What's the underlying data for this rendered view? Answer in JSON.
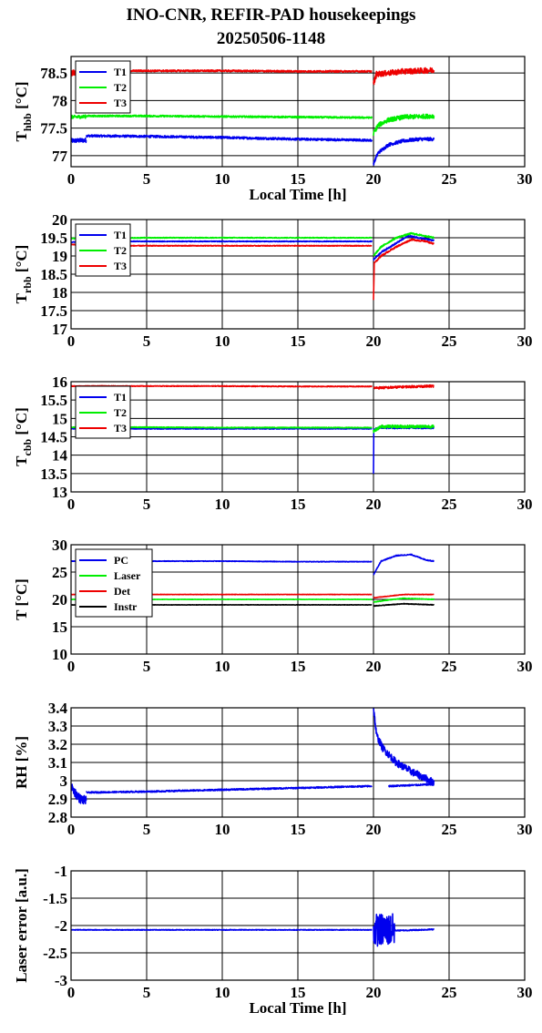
{
  "title_line1": "INO-CNR, REFIR-PAD housekeepings",
  "title_line2": "20250506-1148",
  "colors": {
    "blue": "#0000ee",
    "green": "#00ee00",
    "red": "#ee0000",
    "black": "#000000"
  },
  "chart_data": [
    {
      "type": "line",
      "ylabel_main": "T",
      "ylabel_sub": "hbb",
      "ylabel_unit": " [°C]",
      "xlabel": "Local Time [h]",
      "xlim": [
        0,
        30
      ],
      "ylim": [
        76.8,
        78.8
      ],
      "xticks": [
        0,
        5,
        10,
        15,
        20,
        25,
        30
      ],
      "yticks": [
        77,
        77.5,
        78,
        78.5
      ],
      "ytick_labels": [
        "77",
        "77.5",
        "78",
        "78.5"
      ],
      "grid": true,
      "legend": "top-left",
      "series": [
        {
          "name": "T1",
          "color": "#0000ee",
          "noise": 0.02,
          "segments": [
            {
              "x": [
                0,
                1
              ],
              "y": [
                77.27,
                77.28
              ],
              "noise": 0.04
            },
            {
              "x": [
                1,
                5,
                10,
                15,
                19.9
              ],
              "y": [
                77.36,
                77.35,
                77.33,
                77.3,
                77.28
              ]
            },
            {
              "x": [
                20,
                20.3,
                21,
                22,
                23,
                24
              ],
              "y": [
                76.85,
                77.05,
                77.2,
                77.27,
                77.3,
                77.3
              ],
              "noise": 0.03
            }
          ]
        },
        {
          "name": "T2",
          "color": "#00ee00",
          "noise": 0.015,
          "segments": [
            {
              "x": [
                0,
                1
              ],
              "y": [
                77.7,
                77.71
              ],
              "noise": 0.03
            },
            {
              "x": [
                1,
                5,
                10,
                15,
                19.9
              ],
              "y": [
                77.72,
                77.72,
                77.71,
                77.7,
                77.69
              ]
            },
            {
              "x": [
                20,
                20.3,
                21,
                22,
                24
              ],
              "y": [
                77.4,
                77.55,
                77.65,
                77.7,
                77.72
              ],
              "noise": 0.04
            }
          ]
        },
        {
          "name": "T3",
          "color": "#ee0000",
          "noise": 0.015,
          "segments": [
            {
              "x": [
                0,
                1
              ],
              "y": [
                78.5,
                78.52
              ],
              "noise": 0.05
            },
            {
              "x": [
                1,
                5,
                10,
                15,
                19.9
              ],
              "y": [
                78.54,
                78.54,
                78.54,
                78.53,
                78.53
              ]
            },
            {
              "x": [
                20,
                20.2,
                21,
                22,
                24
              ],
              "y": [
                78.3,
                78.48,
                78.5,
                78.53,
                78.55
              ],
              "noise": 0.05
            }
          ]
        }
      ]
    },
    {
      "type": "line",
      "ylabel_main": "T",
      "ylabel_sub": "rbb",
      "ylabel_unit": " [°C]",
      "xlabel": "",
      "xlim": [
        0,
        30
      ],
      "ylim": [
        17,
        20
      ],
      "xticks": [
        0,
        5,
        10,
        15,
        20,
        25,
        30
      ],
      "yticks": [
        17,
        17.5,
        18,
        18.5,
        19,
        19.5,
        20
      ],
      "ytick_labels": [
        "17",
        "17.5",
        "18",
        "18.5",
        "19",
        "19.5",
        "20"
      ],
      "grid": true,
      "legend": "top-left",
      "series": [
        {
          "name": "T1",
          "color": "#0000ee",
          "noise": 0.01,
          "segments": [
            {
              "x": [
                0,
                1,
                5,
                10,
                15,
                19.9
              ],
              "y": [
                19.38,
                19.4,
                19.4,
                19.4,
                19.4,
                19.4
              ]
            },
            {
              "x": [
                20,
                20.5,
                21.5,
                22.3,
                23,
                24
              ],
              "y": [
                18.9,
                19.1,
                19.35,
                19.55,
                19.5,
                19.42
              ],
              "noise": 0.02
            }
          ]
        },
        {
          "name": "T2",
          "color": "#00ee00",
          "noise": 0.01,
          "segments": [
            {
              "x": [
                0,
                5,
                10,
                15,
                19.9
              ],
              "y": [
                19.48,
                19.5,
                19.5,
                19.5,
                19.5
              ]
            },
            {
              "x": [
                20,
                20.5,
                21.5,
                22.5,
                23,
                24
              ],
              "y": [
                19.0,
                19.25,
                19.5,
                19.62,
                19.58,
                19.5
              ],
              "noise": 0.02
            }
          ]
        },
        {
          "name": "T3",
          "color": "#ee0000",
          "noise": 0.01,
          "segments": [
            {
              "x": [
                0,
                1,
                5,
                10,
                15,
                19.9
              ],
              "y": [
                19.32,
                19.28,
                19.28,
                19.28,
                19.28,
                19.28
              ]
            },
            {
              "x": [
                20,
                20.05,
                20.5,
                21.5,
                22.5,
                23.5,
                24
              ],
              "y": [
                17.8,
                18.8,
                19.0,
                19.25,
                19.45,
                19.4,
                19.33
              ],
              "noise": 0.02
            }
          ]
        }
      ]
    },
    {
      "type": "line",
      "ylabel_main": "T",
      "ylabel_sub": "cbb",
      "ylabel_unit": " [°C]",
      "xlabel": "",
      "xlim": [
        0,
        30
      ],
      "ylim": [
        13,
        16
      ],
      "xticks": [
        0,
        5,
        10,
        15,
        20,
        25,
        30
      ],
      "yticks": [
        13,
        13.5,
        14,
        14.5,
        15,
        15.5,
        16
      ],
      "ytick_labels": [
        "13",
        "13.5",
        "14",
        "14.5",
        "15",
        "15.5",
        "16"
      ],
      "grid": true,
      "legend": "top-left",
      "series": [
        {
          "name": "T1",
          "color": "#0000ee",
          "noise": 0.01,
          "segments": [
            {
              "x": [
                0,
                5,
                10,
                15,
                19.9
              ],
              "y": [
                14.72,
                14.72,
                14.72,
                14.72,
                14.72
              ]
            },
            {
              "x": [
                20,
                20.02,
                20.5,
                22,
                24
              ],
              "y": [
                13.5,
                14.7,
                14.75,
                14.75,
                14.75
              ],
              "noise": 0.03
            }
          ]
        },
        {
          "name": "T2",
          "color": "#00ee00",
          "noise": 0.01,
          "segments": [
            {
              "x": [
                0,
                5,
                10,
                15,
                19.9
              ],
              "y": [
                14.76,
                14.76,
                14.75,
                14.75,
                14.75
              ]
            },
            {
              "x": [
                20,
                20.5,
                22,
                24
              ],
              "y": [
                14.65,
                14.78,
                14.78,
                14.78
              ],
              "noise": 0.04
            }
          ]
        },
        {
          "name": "T3",
          "color": "#ee0000",
          "noise": 0.01,
          "segments": [
            {
              "x": [
                0,
                5,
                10,
                15,
                19.9
              ],
              "y": [
                15.88,
                15.88,
                15.88,
                15.87,
                15.87
              ]
            },
            {
              "x": [
                20,
                21,
                22,
                24
              ],
              "y": [
                15.83,
                15.84,
                15.86,
                15.88
              ],
              "noise": 0.03
            }
          ]
        }
      ]
    },
    {
      "type": "line",
      "ylabel_main": "T [°C]",
      "ylabel_sub": "",
      "ylabel_unit": "",
      "xlabel": "",
      "xlim": [
        0,
        30
      ],
      "ylim": [
        10,
        30
      ],
      "xticks": [
        0,
        5,
        10,
        15,
        20,
        25,
        30
      ],
      "yticks": [
        10,
        15,
        20,
        25,
        30
      ],
      "ytick_labels": [
        "10",
        "15",
        "20",
        "25",
        "30"
      ],
      "grid": true,
      "legend": "top-left",
      "series": [
        {
          "name": "PC",
          "color": "#0000ee",
          "noise": 0.05,
          "segments": [
            {
              "x": [
                0,
                5,
                10,
                15,
                19.9
              ],
              "y": [
                27.0,
                27.0,
                27.0,
                26.9,
                26.9
              ]
            },
            {
              "x": [
                20,
                20.5,
                21.5,
                22.5,
                23.5,
                24
              ],
              "y": [
                24.5,
                27.0,
                28.0,
                28.2,
                27.2,
                27.0
              ],
              "noise": 0.08
            }
          ]
        },
        {
          "name": "Laser",
          "color": "#00ee00",
          "noise": 0.03,
          "segments": [
            {
              "x": [
                0,
                5,
                10,
                15,
                19.9
              ],
              "y": [
                20.0,
                20.0,
                20.0,
                20.0,
                20.0
              ]
            },
            {
              "x": [
                20,
                21,
                22,
                24
              ],
              "y": [
                19.5,
                19.9,
                20.2,
                20.0
              ],
              "noise": 0.05
            }
          ]
        },
        {
          "name": "Det",
          "color": "#ee0000",
          "noise": 0.03,
          "segments": [
            {
              "x": [
                0,
                5,
                10,
                15,
                19.9
              ],
              "y": [
                20.9,
                20.9,
                20.9,
                20.9,
                20.9
              ]
            },
            {
              "x": [
                20,
                21,
                22,
                24
              ],
              "y": [
                20.3,
                20.6,
                20.9,
                20.9
              ],
              "noise": 0.04
            }
          ]
        },
        {
          "name": "Instr",
          "color": "#000000",
          "noise": 0.03,
          "segments": [
            {
              "x": [
                0,
                5,
                10,
                15,
                19.9
              ],
              "y": [
                19.0,
                19.0,
                19.0,
                19.0,
                19.0
              ]
            },
            {
              "x": [
                20,
                21,
                22,
                24
              ],
              "y": [
                18.8,
                19.0,
                19.2,
                19.0
              ],
              "noise": 0.05
            }
          ]
        }
      ]
    },
    {
      "type": "line",
      "ylabel_main": "RH [%]",
      "ylabel_sub": "",
      "ylabel_unit": "",
      "xlabel": "",
      "xlim": [
        0,
        30
      ],
      "ylim": [
        2.8,
        3.4
      ],
      "xticks": [
        0,
        5,
        10,
        15,
        20,
        25,
        30
      ],
      "yticks": [
        2.8,
        2.9,
        3,
        3.1,
        3.2,
        3.3,
        3.4
      ],
      "ytick_labels": [
        "2.8",
        "2.9",
        "3",
        "3.1",
        "3.2",
        "3.3",
        "3.4"
      ],
      "grid": true,
      "legend": "none",
      "series": [
        {
          "name": "",
          "color": "#0000ee",
          "noise": 0.004,
          "segments": [
            {
              "x": [
                0,
                0.3,
                0.6,
                1.0
              ],
              "y": [
                2.97,
                2.93,
                2.9,
                2.89
              ],
              "noise": 0.025
            },
            {
              "x": [
                1.0,
                5,
                10,
                15,
                19.9
              ],
              "y": [
                2.935,
                2.94,
                2.95,
                2.96,
                2.97
              ]
            },
            {
              "x": [
                20,
                20.2,
                20.6,
                21.5,
                22.5,
                23.5,
                24
              ],
              "y": [
                3.4,
                3.25,
                3.18,
                3.1,
                3.05,
                3.01,
                2.99
              ],
              "noise": 0.02
            },
            {
              "x": [
                21,
                24
              ],
              "y": [
                2.97,
                2.98
              ]
            }
          ]
        }
      ]
    },
    {
      "type": "line",
      "ylabel_main": "Laser error [a.u.]",
      "ylabel_sub": "",
      "ylabel_unit": "",
      "xlabel": "Local Time [h]",
      "xlim": [
        0,
        30
      ],
      "ylim": [
        -3,
        -1
      ],
      "xticks": [
        0,
        5,
        10,
        15,
        20,
        25,
        30
      ],
      "yticks": [
        -3,
        -2.5,
        -2,
        -1.5,
        -1
      ],
      "ytick_labels": [
        "-3",
        "-2.5",
        "-2",
        "-1.5",
        "-1"
      ],
      "grid": true,
      "legend": "none",
      "series": [
        {
          "name": "",
          "color": "#0000ee",
          "noise": 0.006,
          "segments": [
            {
              "x": [
                0,
                5,
                10,
                15,
                19.9
              ],
              "y": [
                -2.08,
                -2.08,
                -2.08,
                -2.08,
                -2.08
              ]
            },
            {
              "x": [
                20,
                20.5,
                21.0,
                21.4
              ],
              "y": [
                -2.08,
                -2.08,
                -2.08,
                -2.08
              ],
              "noise": 0.3
            },
            {
              "x": [
                21.4,
                22,
                23,
                24
              ],
              "y": [
                -2.09,
                -2.09,
                -2.08,
                -2.07
              ],
              "noise": 0.01
            }
          ]
        }
      ]
    }
  ]
}
